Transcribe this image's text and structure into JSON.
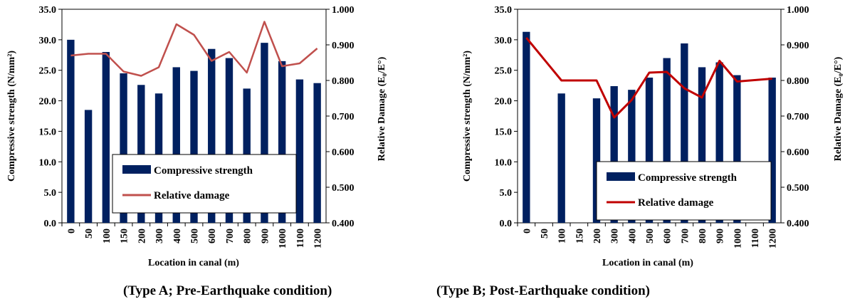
{
  "colors": {
    "bar": "#002060",
    "lineA": "#c0504d",
    "lineB": "#c00000"
  },
  "chart_data": [
    {
      "type": "bar",
      "caption": "(Type A; Pre-Earthquake condition)",
      "categories": [
        "0",
        "50",
        "100",
        "150",
        "200",
        "300",
        "400",
        "500",
        "600",
        "700",
        "800",
        "900",
        "1000",
        "1100",
        "1200"
      ],
      "xlabel": "Location in canal (m)",
      "ylabel": "Compressive strength (N/mm²)",
      "y2label": "Relative Damage (E₀/E°)",
      "ylim": [
        0,
        35
      ],
      "y2lim": [
        0.4,
        1.0
      ],
      "yticks": [
        "0.0",
        "5.0",
        "10.0",
        "15.0",
        "20.0",
        "25.0",
        "30.0",
        "35.0"
      ],
      "y2ticks": [
        "0.400",
        "0.500",
        "0.600",
        "0.700",
        "0.800",
        "0.900",
        "1.000"
      ],
      "legend_position": "bottom-center",
      "series": [
        {
          "name": "Compressive strength",
          "kind": "bar",
          "values": [
            30.0,
            18.5,
            28.0,
            24.5,
            22.6,
            21.2,
            25.5,
            24.9,
            28.5,
            27.0,
            22.0,
            29.5,
            26.5,
            23.5,
            22.9
          ]
        },
        {
          "name": "Relative damage",
          "kind": "line",
          "axis": "y2",
          "values": [
            0.87,
            0.875,
            0.875,
            0.825,
            0.813,
            0.837,
            0.958,
            0.928,
            0.855,
            0.88,
            0.822,
            0.965,
            0.84,
            0.848,
            0.89
          ]
        }
      ]
    },
    {
      "type": "bar",
      "caption": "(Type B; Post-Earthquake condition)",
      "categories": [
        "0",
        "50",
        "100",
        "150",
        "200",
        "300",
        "400",
        "500",
        "600",
        "700",
        "800",
        "900",
        "1000",
        "1100",
        "1200"
      ],
      "xlabel": "Location in canal (m)",
      "ylabel": "Compressive strength (N/mm²)",
      "y2label": "Relative Damage (E₀/E°)",
      "ylim": [
        0,
        35
      ],
      "y2lim": [
        0.4,
        1.0
      ],
      "yticks": [
        "0.0",
        "5.0",
        "10.0",
        "15.0",
        "20.0",
        "25.0",
        "30.0",
        "35.0"
      ],
      "y2ticks": [
        "0.400",
        "0.500",
        "0.600",
        "0.700",
        "0.800",
        "0.900",
        "1.000"
      ],
      "legend_position": "bottom-right",
      "series": [
        {
          "name": "Compressive strength",
          "kind": "bar",
          "values": [
            31.3,
            null,
            21.2,
            null,
            20.4,
            22.4,
            21.8,
            23.8,
            27.0,
            29.4,
            25.5,
            26.3,
            24.2,
            null,
            23.8
          ]
        },
        {
          "name": "Relative damage",
          "kind": "line",
          "axis": "y2",
          "values": [
            0.92,
            null,
            0.8,
            null,
            0.8,
            0.696,
            0.745,
            0.822,
            0.824,
            0.778,
            0.752,
            0.855,
            0.797,
            null,
            0.805
          ]
        }
      ]
    }
  ]
}
